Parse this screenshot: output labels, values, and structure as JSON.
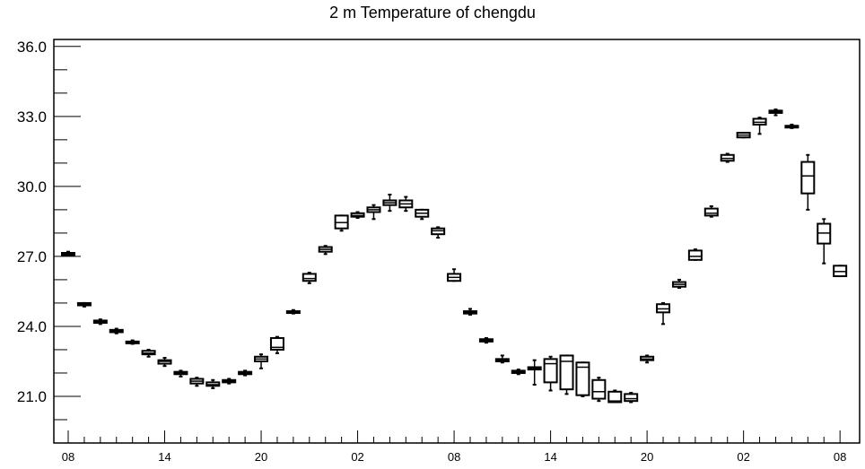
{
  "chart_data": {
    "type": "box",
    "title": "2 m Temperature of chengdu",
    "xlabel": "",
    "ylabel": "",
    "ylim": [
      19.0,
      36.3
    ],
    "grid": false,
    "y_tick_labels": [
      "21.0",
      "24.0",
      "27.0",
      "30.0",
      "33.0",
      "36.0"
    ],
    "y_tick_values": [
      21.0,
      24.0,
      27.0,
      30.0,
      33.0,
      36.0
    ],
    "x_tick_labels": [
      "08",
      "14",
      "20",
      "02",
      "08",
      "14",
      "20",
      "02",
      "08"
    ],
    "x_tick_positions": [
      0,
      6,
      12,
      18,
      24,
      30,
      36,
      42,
      48
    ],
    "boxes": [
      {
        "x": 0,
        "min": 27.05,
        "q1": 27.05,
        "median": 27.1,
        "q3": 27.15,
        "max": 27.2
      },
      {
        "x": 1,
        "min": 24.85,
        "q1": 24.9,
        "median": 24.95,
        "q3": 25.0,
        "max": 25.0
      },
      {
        "x": 2,
        "min": 24.1,
        "q1": 24.15,
        "median": 24.2,
        "q3": 24.25,
        "max": 24.3
      },
      {
        "x": 3,
        "min": 23.7,
        "q1": 23.75,
        "median": 23.8,
        "q3": 23.85,
        "max": 23.9
      },
      {
        "x": 4,
        "min": 23.25,
        "q1": 23.3,
        "median": 23.3,
        "q3": 23.35,
        "max": 23.4
      },
      {
        "x": 5,
        "min": 22.7,
        "q1": 22.8,
        "median": 22.85,
        "q3": 22.95,
        "max": 23.0
      },
      {
        "x": 6,
        "min": 22.3,
        "q1": 22.4,
        "median": 22.5,
        "q3": 22.55,
        "max": 22.65
      },
      {
        "x": 7,
        "min": 21.85,
        "q1": 21.95,
        "median": 22.0,
        "q3": 22.05,
        "max": 22.1
      },
      {
        "x": 8,
        "min": 21.45,
        "q1": 21.55,
        "median": 21.65,
        "q3": 21.75,
        "max": 21.8
      },
      {
        "x": 9,
        "min": 21.35,
        "q1": 21.45,
        "median": 21.5,
        "q3": 21.6,
        "max": 21.7
      },
      {
        "x": 10,
        "min": 21.55,
        "q1": 21.6,
        "median": 21.65,
        "q3": 21.7,
        "max": 21.75
      },
      {
        "x": 11,
        "min": 21.9,
        "q1": 21.95,
        "median": 22.0,
        "q3": 22.05,
        "max": 22.1
      },
      {
        "x": 12,
        "min": 22.2,
        "q1": 22.5,
        "median": 22.6,
        "q3": 22.7,
        "max": 22.8
      },
      {
        "x": 13,
        "min": 22.85,
        "q1": 23.0,
        "median": 23.1,
        "q3": 23.5,
        "max": 23.55
      },
      {
        "x": 14,
        "min": 24.55,
        "q1": 24.6,
        "median": 24.65,
        "q3": 24.65,
        "max": 24.7
      },
      {
        "x": 15,
        "min": 25.85,
        "q1": 25.95,
        "median": 26.05,
        "q3": 26.25,
        "max": 26.3
      },
      {
        "x": 16,
        "min": 27.1,
        "q1": 27.2,
        "median": 27.3,
        "q3": 27.4,
        "max": 27.45
      },
      {
        "x": 17,
        "min": 28.1,
        "q1": 28.2,
        "median": 28.45,
        "q3": 28.75,
        "max": 28.75
      },
      {
        "x": 18,
        "min": 28.65,
        "q1": 28.7,
        "median": 28.75,
        "q3": 28.85,
        "max": 28.9
      },
      {
        "x": 19,
        "min": 28.6,
        "q1": 28.9,
        "median": 29.0,
        "q3": 29.1,
        "max": 29.2
      },
      {
        "x": 20,
        "min": 28.95,
        "q1": 29.2,
        "median": 29.3,
        "q3": 29.4,
        "max": 29.65
      },
      {
        "x": 21,
        "min": 28.95,
        "q1": 29.1,
        "median": 29.25,
        "q3": 29.4,
        "max": 29.55
      },
      {
        "x": 22,
        "min": 28.6,
        "q1": 28.7,
        "median": 28.85,
        "q3": 29.0,
        "max": 29.0
      },
      {
        "x": 23,
        "min": 27.8,
        "q1": 27.95,
        "median": 28.1,
        "q3": 28.2,
        "max": 28.25
      },
      {
        "x": 24,
        "min": 25.95,
        "q1": 25.95,
        "median": 26.1,
        "q3": 26.25,
        "max": 26.45
      },
      {
        "x": 25,
        "min": 24.5,
        "q1": 24.55,
        "median": 24.6,
        "q3": 24.65,
        "max": 24.75
      },
      {
        "x": 26,
        "min": 23.3,
        "q1": 23.35,
        "median": 23.4,
        "q3": 23.45,
        "max": 23.5
      },
      {
        "x": 27,
        "min": 22.45,
        "q1": 22.5,
        "median": 22.55,
        "q3": 22.6,
        "max": 22.75
      },
      {
        "x": 28,
        "min": 21.95,
        "q1": 22.0,
        "median": 22.05,
        "q3": 22.1,
        "max": 22.15
      },
      {
        "x": 29,
        "min": 21.5,
        "q1": 22.15,
        "median": 22.2,
        "q3": 22.25,
        "max": 22.55
      },
      {
        "x": 30,
        "min": 21.25,
        "q1": 21.6,
        "median": 22.4,
        "q3": 22.6,
        "max": 22.7
      },
      {
        "x": 31,
        "min": 21.1,
        "q1": 21.3,
        "median": 22.5,
        "q3": 22.75,
        "max": 22.75
      },
      {
        "x": 32,
        "min": 21.0,
        "q1": 21.05,
        "median": 22.25,
        "q3": 22.45,
        "max": 22.45
      },
      {
        "x": 33,
        "min": 20.8,
        "q1": 20.9,
        "median": 21.2,
        "q3": 21.7,
        "max": 21.8
      },
      {
        "x": 34,
        "min": 20.75,
        "q1": 20.75,
        "median": 20.8,
        "q3": 21.2,
        "max": 21.25
      },
      {
        "x": 35,
        "min": 20.75,
        "q1": 20.8,
        "median": 20.9,
        "q3": 21.1,
        "max": 21.15
      },
      {
        "x": 36,
        "min": 22.45,
        "q1": 22.55,
        "median": 22.6,
        "q3": 22.7,
        "max": 22.75
      },
      {
        "x": 37,
        "min": 24.1,
        "q1": 24.6,
        "median": 24.75,
        "q3": 24.95,
        "max": 25.0
      },
      {
        "x": 38,
        "min": 25.65,
        "q1": 25.7,
        "median": 25.8,
        "q3": 25.9,
        "max": 26.0
      },
      {
        "x": 39,
        "min": 26.85,
        "q1": 26.85,
        "median": 27.0,
        "q3": 27.25,
        "max": 27.3
      },
      {
        "x": 40,
        "min": 28.7,
        "q1": 28.75,
        "median": 28.85,
        "q3": 29.05,
        "max": 29.15
      },
      {
        "x": 41,
        "min": 31.05,
        "q1": 31.1,
        "median": 31.2,
        "q3": 31.35,
        "max": 31.4
      },
      {
        "x": 42,
        "min": 32.1,
        "q1": 32.1,
        "median": 32.2,
        "q3": 32.3,
        "max": 32.3
      },
      {
        "x": 43,
        "min": 32.25,
        "q1": 32.65,
        "median": 32.75,
        "q3": 32.9,
        "max": 32.95
      },
      {
        "x": 44,
        "min": 33.05,
        "q1": 33.15,
        "median": 33.2,
        "q3": 33.25,
        "max": 33.3
      },
      {
        "x": 45,
        "min": 32.5,
        "q1": 32.55,
        "median": 32.6,
        "q3": 32.6,
        "max": 32.65
      },
      {
        "x": 46,
        "min": 29.0,
        "q1": 29.7,
        "median": 30.45,
        "q3": 31.05,
        "max": 31.35
      },
      {
        "x": 47,
        "min": 26.7,
        "q1": 27.55,
        "median": 28.0,
        "q3": 28.4,
        "max": 28.6
      },
      {
        "x": 48,
        "min": 26.15,
        "q1": 26.15,
        "median": 26.35,
        "q3": 26.6,
        "max": 26.6
      }
    ]
  }
}
